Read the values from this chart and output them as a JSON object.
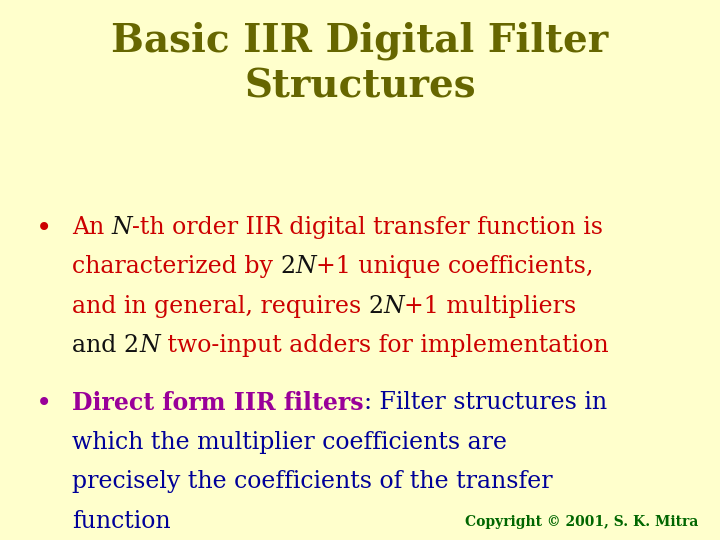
{
  "background_color": "#ffffcc",
  "title_line1": "Basic IIR Digital Filter",
  "title_line2": "Structures",
  "title_color": "#666600",
  "title_fontsize": 28,
  "bullet_color_red": "#cc0000",
  "bullet_color_blue": "#000099",
  "bullet_color_purple": "#990099",
  "bullet_color_black": "#111111",
  "copyright_text": "Copyright © 2001, S. K. Mitra",
  "copyright_color": "#006600",
  "copyright_fontsize": 10,
  "main_fontsize": 17,
  "bullet_fontsize": 20
}
